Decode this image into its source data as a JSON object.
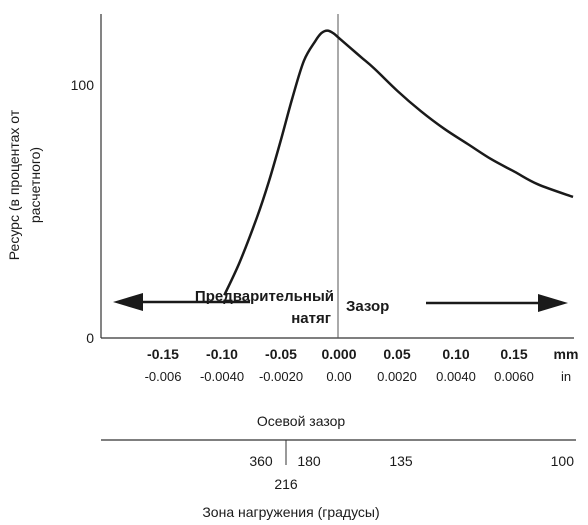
{
  "chart_data": {
    "type": "line",
    "ylabel_line1": "Ресурс (в процентах от",
    "ylabel_line2": "расчетного)",
    "y_ticks": [
      "0",
      "100"
    ],
    "x_mm_ticks": [
      "-0.15",
      "-0.10",
      "-0.05",
      "0.000",
      "0.05",
      "0.10",
      "0.15"
    ],
    "x_mm_unit": "mm",
    "x_in_ticks": [
      "-0.006",
      "-0.0040",
      "-0.0020",
      "0.00",
      "0.0020",
      "0.0040",
      "0.0060"
    ],
    "x_in_unit": "in",
    "xlabel": "Осевой зазор",
    "zone_ticks": [
      "360",
      "180",
      "135",
      "100"
    ],
    "zone_tick_216": "216",
    "zone_label": "Зона нагружения (градусы)",
    "annotation_preload_line1": "Предварительный",
    "annotation_preload_line2": "натяг",
    "annotation_clearance": "Зазор",
    "xlim_mm": [
      -0.2,
      0.2
    ],
    "ylim": [
      0,
      120
    ],
    "series": [
      {
        "x": [
          -0.098,
          -0.085,
          -0.07,
          -0.06,
          -0.05,
          -0.04,
          -0.03,
          -0.02,
          -0.015,
          -0.01,
          -0.005,
          0.0,
          0.01,
          0.02,
          0.03,
          0.05,
          0.07,
          0.09,
          0.11,
          0.13,
          0.15,
          0.17,
          0.2
        ],
        "y": [
          17,
          30,
          48,
          62,
          78,
          95,
          110,
          118,
          121,
          122,
          121,
          119,
          115,
          111,
          107,
          98,
          90,
          83,
          77,
          71,
          66,
          61,
          56
        ]
      }
    ],
    "grid": false,
    "colors": {
      "line": "#1a1a1a",
      "axis": "#333333"
    }
  }
}
